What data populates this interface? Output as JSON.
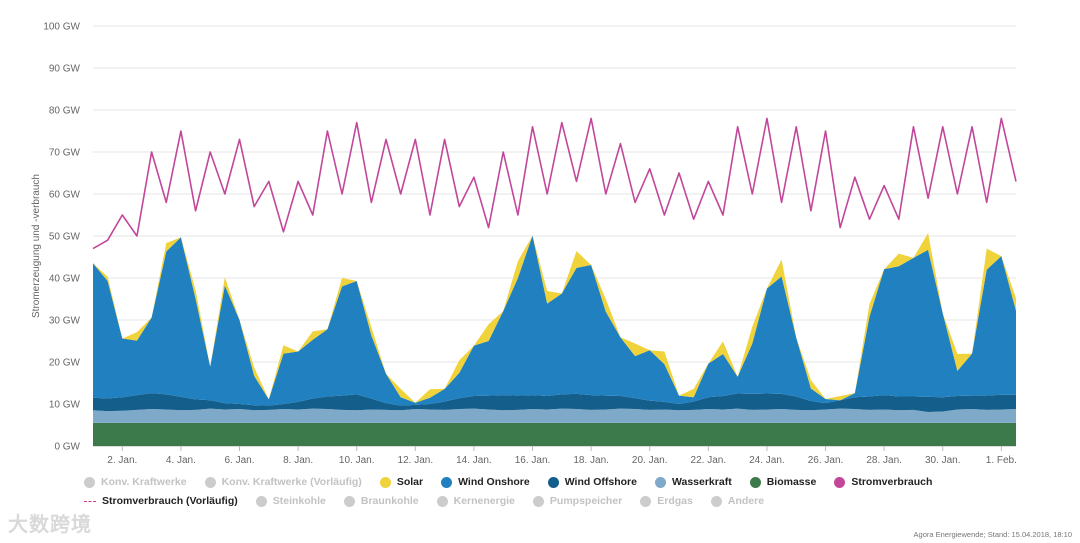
{
  "chart_data": {
    "type": "area",
    "ylabel": "Stromerzeugung und -verbrauch",
    "ylim": [
      0,
      100
    ],
    "yticks": [
      0,
      10,
      20,
      30,
      40,
      50,
      60,
      70,
      80,
      90,
      100
    ],
    "ytick_labels": [
      "0 GW",
      "10 GW",
      "20 GW",
      "30 GW",
      "40 GW",
      "50 GW",
      "60 GW",
      "70 GW",
      "80 GW",
      "90 GW",
      "100 GW"
    ],
    "xlim": [
      1,
      32.5
    ],
    "xticks": [
      2,
      4,
      6,
      8,
      10,
      12,
      14,
      16,
      18,
      20,
      22,
      24,
      26,
      28,
      30,
      32
    ],
    "xtick_labels": [
      "2. Jan.",
      "4. Jan.",
      "6. Jan.",
      "8. Jan.",
      "10. Jan.",
      "12. Jan.",
      "14. Jan.",
      "16. Jan.",
      "18. Jan.",
      "20. Jan.",
      "22. Jan.",
      "24. Jan.",
      "26. Jan.",
      "28. Jan.",
      "30. Jan.",
      "1. Feb."
    ],
    "x_day": [
      1.0,
      1.5,
      2.0,
      2.5,
      3.0,
      3.5,
      4.0,
      4.5,
      5.0,
      5.5,
      6.0,
      6.5,
      7.0,
      7.5,
      8.0,
      8.5,
      9.0,
      9.5,
      10.0,
      10.5,
      11.0,
      11.5,
      12.0,
      12.5,
      13.0,
      13.5,
      14.0,
      14.5,
      15.0,
      15.5,
      16.0,
      16.5,
      17.0,
      17.5,
      18.0,
      18.5,
      19.0,
      19.5,
      20.0,
      20.5,
      21.0,
      21.5,
      22.0,
      22.5,
      23.0,
      23.5,
      24.0,
      24.5,
      25.0,
      25.5,
      26.0,
      26.5,
      27.0,
      27.5,
      28.0,
      28.5,
      29.0,
      29.5,
      30.0,
      30.5,
      31.0,
      31.5,
      32.0,
      32.5
    ],
    "series": [
      {
        "name": "Biomasse",
        "color": "#3d7a4b",
        "values": [
          5.5,
          5.5,
          5.5,
          5.5,
          5.5,
          5.5,
          5.5,
          5.5,
          5.5,
          5.5,
          5.5,
          5.5,
          5.5,
          5.5,
          5.5,
          5.5,
          5.5,
          5.5,
          5.5,
          5.5,
          5.5,
          5.5,
          5.5,
          5.5,
          5.5,
          5.5,
          5.5,
          5.5,
          5.5,
          5.5,
          5.5,
          5.5,
          5.5,
          5.5,
          5.5,
          5.5,
          5.5,
          5.5,
          5.5,
          5.5,
          5.5,
          5.5,
          5.5,
          5.5,
          5.5,
          5.5,
          5.5,
          5.5,
          5.5,
          5.5,
          5.5,
          5.5,
          5.5,
          5.5,
          5.5,
          5.5,
          5.5,
          5.5,
          5.5,
          5.5,
          5.5,
          5.5,
          5.5,
          5.5
        ]
      },
      {
        "name": "Wasserkraft",
        "color": "#7fa9c8",
        "values": [
          3,
          2.8,
          2.9,
          3.1,
          3.3,
          3.2,
          3,
          3.1,
          3.4,
          3.2,
          3.3,
          3,
          3.1,
          3.3,
          3.2,
          3.4,
          3.3,
          3.1,
          3,
          3.2,
          3.1,
          3,
          3.3,
          3.2,
          3.1,
          3.3,
          3.4,
          3.2,
          3,
          3.1,
          3.3,
          3.2,
          3.4,
          3.3,
          3.1,
          3.2,
          3.4,
          3.3,
          3.1,
          3.2,
          3,
          3.1,
          3.3,
          3.2,
          3.4,
          3.1,
          3.2,
          3.3,
          3.1,
          3,
          3.2,
          3.4,
          3.3,
          3.1,
          3.2,
          3,
          3.1,
          2.6,
          2.7,
          3.2,
          3.3,
          3.1,
          3.2,
          3.3
        ]
      },
      {
        "name": "Wind Offshore",
        "color": "#145e8c",
        "values": [
          3,
          3,
          3.2,
          3.5,
          3.8,
          3.6,
          3.2,
          2.5,
          2,
          1.5,
          1.2,
          1.2,
          1,
          1.2,
          1.8,
          2.4,
          3,
          3.4,
          3.8,
          2.6,
          1.6,
          1.1,
          1,
          1.3,
          2,
          2.6,
          3,
          3.3,
          3.6,
          3.4,
          3.3,
          3.2,
          3.4,
          3.6,
          3.5,
          3.3,
          3,
          2.6,
          2.2,
          1.8,
          1.5,
          2,
          2.8,
          3.2,
          3.6,
          3.8,
          3.8,
          3.6,
          3.2,
          2.2,
          1.5,
          2,
          2.8,
          3.2,
          3.4,
          3.3,
          3.2,
          3.6,
          3.4,
          3.2,
          3.2,
          3.4,
          3.5,
          3.4
        ]
      },
      {
        "name": "Wind Onshore",
        "color": "#2181c0",
        "values": [
          32,
          28,
          14,
          13,
          18,
          34,
          38,
          24,
          8,
          28,
          20,
          7,
          1.5,
          12,
          12,
          14,
          16,
          26,
          27,
          15,
          7,
          2,
          0.5,
          1.5,
          3,
          6,
          12,
          13,
          20,
          28,
          38,
          22,
          24,
          30,
          31,
          20,
          14,
          10,
          12,
          9,
          2,
          1,
          8,
          10,
          4,
          12,
          25,
          28,
          14,
          3,
          1,
          0,
          1,
          19,
          30,
          31,
          33,
          35,
          20,
          6,
          10,
          30,
          33,
          20
        ]
      },
      {
        "name": "Solar",
        "color": "#f0d23a",
        "values": [
          0,
          1,
          0,
          2,
          0,
          2,
          0,
          2,
          0,
          2,
          0,
          2,
          0,
          2,
          0,
          2,
          0,
          2,
          0,
          2,
          0,
          2,
          0,
          2,
          0,
          3,
          0,
          4,
          0,
          4,
          0,
          3,
          0,
          4,
          0,
          3,
          0,
          3,
          0,
          3,
          0,
          2,
          0,
          3,
          0,
          4,
          0,
          4,
          0,
          2,
          0,
          1,
          0,
          3,
          0,
          3,
          0,
          4,
          0,
          4,
          0,
          5,
          0,
          3
        ]
      },
      {
        "name": "Stromverbrauch",
        "color": "#c2479a",
        "values": [
          47,
          49,
          55,
          50,
          70,
          58,
          75,
          56,
          70,
          60,
          73,
          57,
          63,
          51,
          63,
          55,
          75,
          60,
          77,
          58,
          73,
          60,
          73,
          55,
          73,
          57,
          64,
          52,
          70,
          55,
          76,
          60,
          77,
          63,
          78,
          60,
          72,
          58,
          66,
          55,
          65,
          54,
          63,
          55,
          76,
          60,
          78,
          58,
          76,
          56,
          75,
          52,
          64,
          54,
          62,
          54,
          76,
          59,
          76,
          60,
          76,
          58,
          78,
          63
        ]
      }
    ],
    "legend": [
      {
        "label": "Konv. Kraftwerke",
        "color": "#cccccc",
        "active": false,
        "style": "dot"
      },
      {
        "label": "Konv. Kraftwerke (Vorläufig)",
        "color": "#cccccc",
        "active": false,
        "style": "dot"
      },
      {
        "label": "Solar",
        "color": "#f0d23a",
        "active": true,
        "style": "dot"
      },
      {
        "label": "Wind Onshore",
        "color": "#2181c0",
        "active": true,
        "style": "dot"
      },
      {
        "label": "Wind Offshore",
        "color": "#145e8c",
        "active": true,
        "style": "dot"
      },
      {
        "label": "Wasserkraft",
        "color": "#7fa9c8",
        "active": true,
        "style": "dot"
      },
      {
        "label": "Biomasse",
        "color": "#3d7a4b",
        "active": true,
        "style": "dot"
      },
      {
        "label": "Stromverbrauch",
        "color": "#c2479a",
        "active": true,
        "style": "line"
      },
      {
        "label": "Stromverbrauch (Vorläufig)",
        "color": "#d33a8f",
        "active": true,
        "style": "dash"
      },
      {
        "label": "Steinkohle",
        "color": "#cccccc",
        "active": false,
        "style": "dot"
      },
      {
        "label": "Braunkohle",
        "color": "#cccccc",
        "active": false,
        "style": "dot"
      },
      {
        "label": "Kernenergie",
        "color": "#cccccc",
        "active": false,
        "style": "dot"
      },
      {
        "label": "Pumpspeicher",
        "color": "#cccccc",
        "active": false,
        "style": "dot"
      },
      {
        "label": "Erdgas",
        "color": "#cccccc",
        "active": false,
        "style": "dot"
      },
      {
        "label": "Andere",
        "color": "#cccccc",
        "active": false,
        "style": "dot"
      }
    ]
  },
  "footer": {
    "credit": "Agora Energiewende; Stand: 15.04.2018, 18:10",
    "watermark": "大数跨境"
  }
}
